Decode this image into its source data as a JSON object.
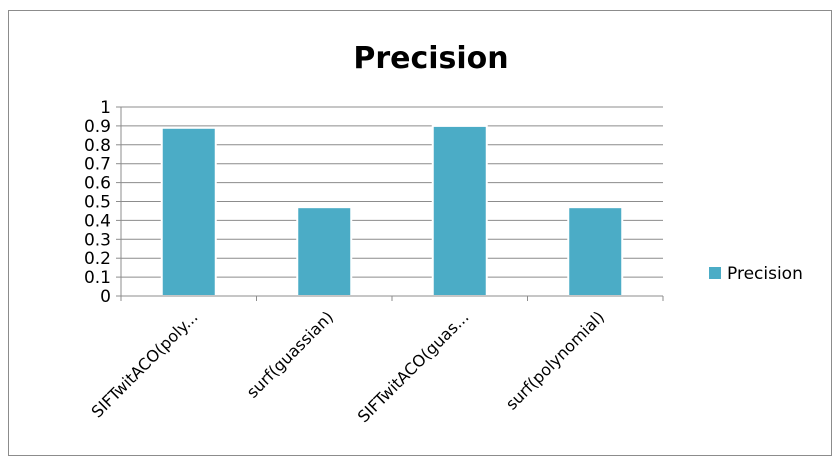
{
  "chart_data": {
    "type": "bar",
    "title": "Precision",
    "categories": [
      "SIFTwitACO(poly...",
      "surf(guassian)",
      "SIFTwitACO(guas...",
      "surf(polynomial)"
    ],
    "series": [
      {
        "name": "Precision",
        "values": [
          0.89,
          0.47,
          0.9,
          0.47
        ]
      }
    ],
    "yticks": [
      "0",
      "0.1",
      "0.2",
      "0.3",
      "0.4",
      "0.5",
      "0.6",
      "0.7",
      "0.8",
      "0.9",
      "1"
    ],
    "ylim": [
      0,
      1
    ],
    "grid": true,
    "legend_position": "right",
    "colors": {
      "bar": "#4bacc6",
      "grid": "#8c8c8c",
      "axis": "#8c8c8c"
    }
  }
}
